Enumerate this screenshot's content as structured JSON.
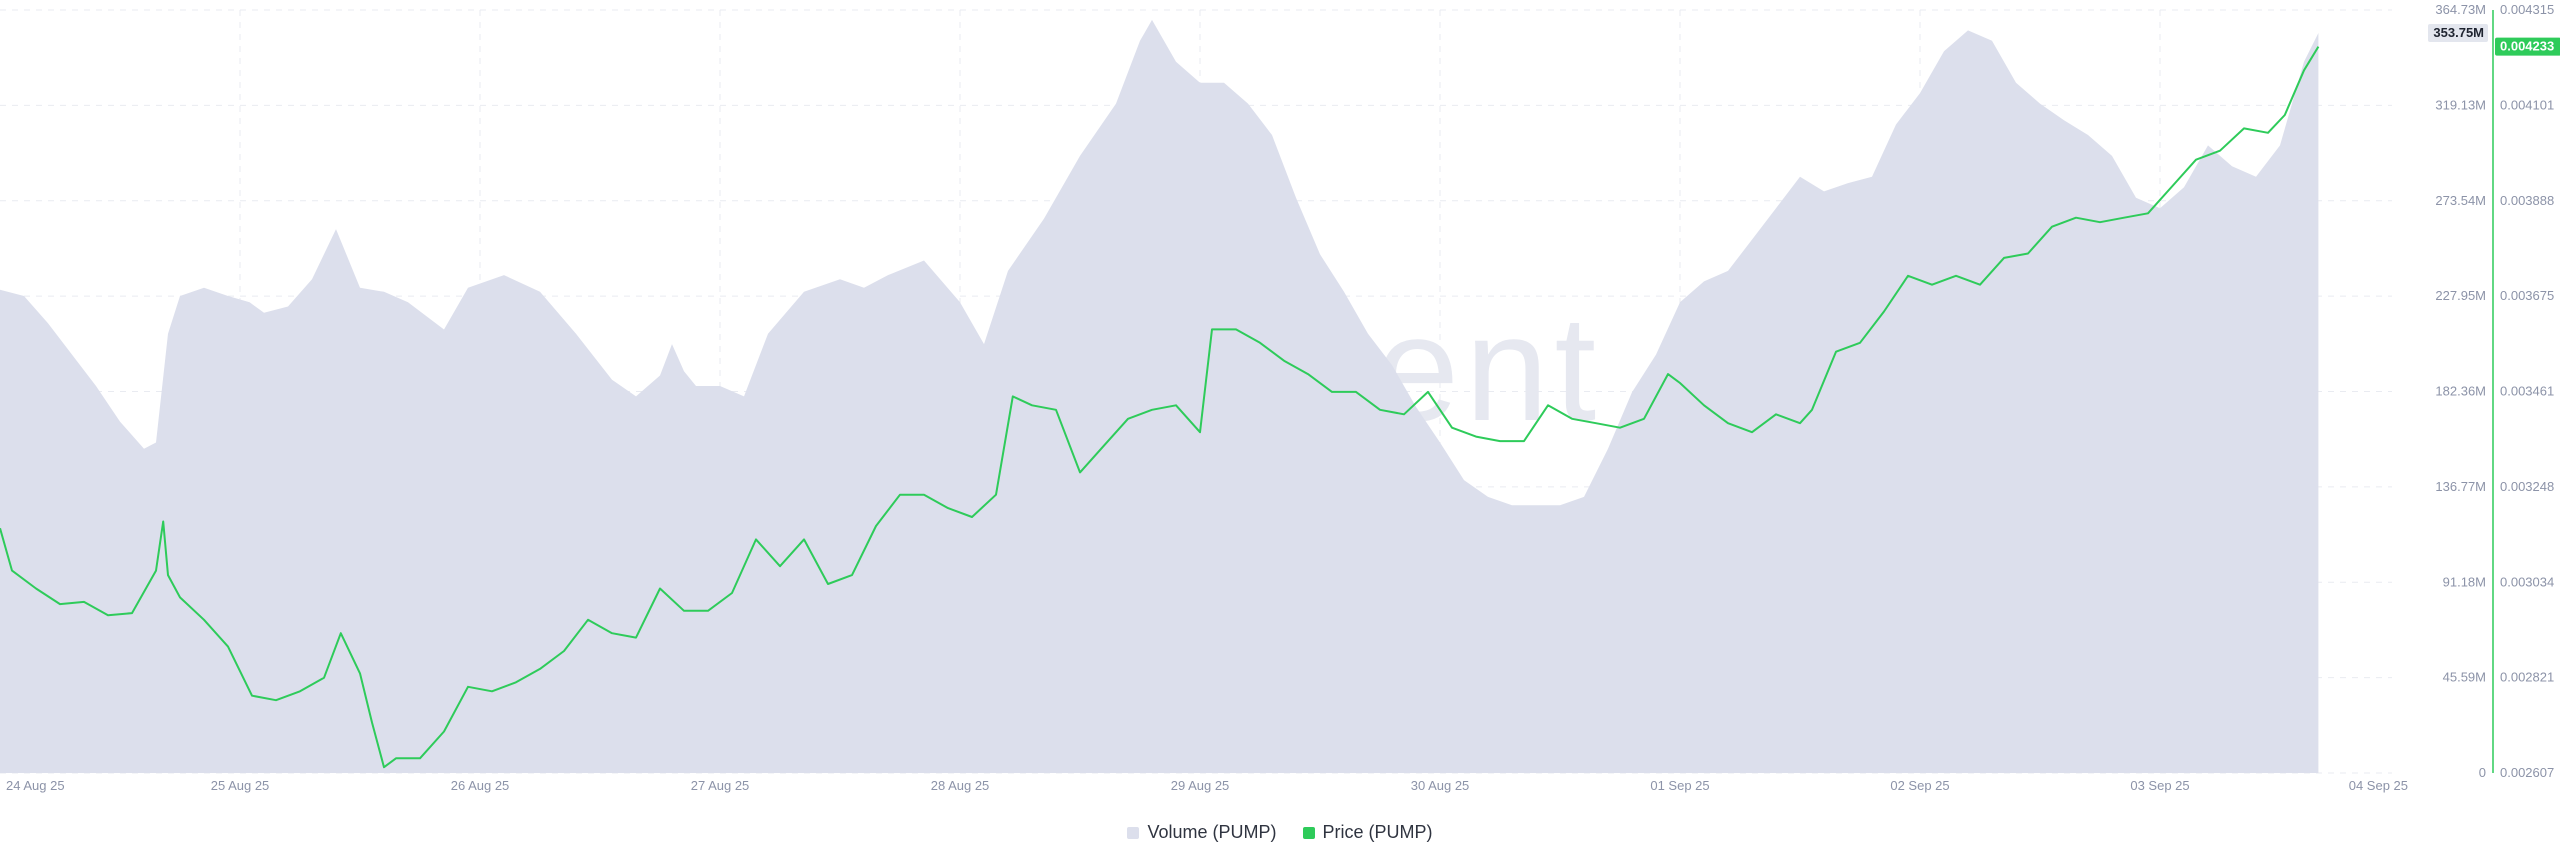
{
  "chart_data": {
    "type": "area+line",
    "x_ticks": [
      "24 Aug 25",
      "25 Aug 25",
      "26 Aug 25",
      "27 Aug 25",
      "28 Aug 25",
      "29 Aug 25",
      "30 Aug 25",
      "01 Sep 25",
      "02 Sep 25",
      "03 Sep 25",
      "04 Sep 25"
    ],
    "volume_axis": {
      "ticks": [
        "0",
        "45.59M",
        "91.18M",
        "136.77M",
        "182.36M",
        "227.95M",
        "273.54M",
        "319.13M",
        "364.73M"
      ],
      "range": [
        0,
        364.73
      ],
      "unit": "M",
      "current_label": "353.75M"
    },
    "price_axis": {
      "ticks": [
        "0.002607",
        "0.002821",
        "0.003034",
        "0.003248",
        "0.003461",
        "0.003675",
        "0.003888",
        "0.004101",
        "0.004315"
      ],
      "range": [
        0.002607,
        0.004315
      ],
      "current_label": "0.004233"
    },
    "series": [
      {
        "name": "Volume (PUMP)",
        "type": "area",
        "color": "#dcdfec",
        "points": [
          [
            0,
            231
          ],
          [
            0.1,
            228
          ],
          [
            0.2,
            215
          ],
          [
            0.3,
            200
          ],
          [
            0.4,
            185
          ],
          [
            0.5,
            168
          ],
          [
            0.6,
            155
          ],
          [
            0.65,
            158
          ],
          [
            0.7,
            210
          ],
          [
            0.75,
            228
          ],
          [
            0.85,
            232
          ],
          [
            0.95,
            228
          ],
          [
            1.04,
            225
          ],
          [
            1.1,
            220
          ],
          [
            1.2,
            223
          ],
          [
            1.3,
            236
          ],
          [
            1.4,
            260
          ],
          [
            1.5,
            232
          ],
          [
            1.6,
            230
          ],
          [
            1.7,
            225
          ],
          [
            1.85,
            212
          ],
          [
            1.95,
            232
          ],
          [
            2.1,
            238
          ],
          [
            2.25,
            230
          ],
          [
            2.4,
            210
          ],
          [
            2.55,
            188
          ],
          [
            2.65,
            180
          ],
          [
            2.75,
            190
          ],
          [
            2.8,
            205
          ],
          [
            2.85,
            192
          ],
          [
            2.9,
            185
          ],
          [
            3.0,
            185
          ],
          [
            3.1,
            180
          ],
          [
            3.2,
            210
          ],
          [
            3.35,
            230
          ],
          [
            3.5,
            236
          ],
          [
            3.6,
            232
          ],
          [
            3.7,
            238
          ],
          [
            3.85,
            245
          ],
          [
            4.0,
            225
          ],
          [
            4.1,
            205
          ],
          [
            4.2,
            240
          ],
          [
            4.35,
            265
          ],
          [
            4.5,
            295
          ],
          [
            4.65,
            320
          ],
          [
            4.75,
            350
          ],
          [
            4.8,
            360
          ],
          [
            4.9,
            340
          ],
          [
            5.0,
            330
          ],
          [
            5.1,
            330
          ],
          [
            5.2,
            320
          ],
          [
            5.3,
            305
          ],
          [
            5.4,
            275
          ],
          [
            5.5,
            248
          ],
          [
            5.6,
            230
          ],
          [
            5.7,
            210
          ],
          [
            5.8,
            195
          ],
          [
            5.9,
            175
          ],
          [
            6.0,
            158
          ],
          [
            6.1,
            140
          ],
          [
            6.2,
            132
          ],
          [
            6.3,
            128
          ],
          [
            6.5,
            128
          ],
          [
            6.6,
            132
          ],
          [
            6.7,
            155
          ],
          [
            6.8,
            182
          ],
          [
            6.9,
            200
          ],
          [
            7.0,
            225
          ],
          [
            7.1,
            235
          ],
          [
            7.2,
            240
          ],
          [
            7.3,
            255
          ],
          [
            7.4,
            270
          ],
          [
            7.5,
            285
          ],
          [
            7.6,
            278
          ],
          [
            7.7,
            282
          ],
          [
            7.8,
            285
          ],
          [
            7.9,
            310
          ],
          [
            8.0,
            325
          ],
          [
            8.1,
            345
          ],
          [
            8.2,
            355
          ],
          [
            8.3,
            350
          ],
          [
            8.4,
            330
          ],
          [
            8.5,
            320
          ],
          [
            8.6,
            312
          ],
          [
            8.7,
            305
          ],
          [
            8.8,
            295
          ],
          [
            8.9,
            275
          ],
          [
            9.0,
            270
          ],
          [
            9.1,
            280
          ],
          [
            9.2,
            300
          ],
          [
            9.3,
            290
          ],
          [
            9.4,
            285
          ],
          [
            9.5,
            300
          ],
          [
            9.6,
            340
          ],
          [
            9.66,
            353.75
          ]
        ]
      },
      {
        "name": "Price (PUMP)",
        "type": "line",
        "color": "#2ecb5a",
        "points": [
          [
            0,
            0.003155
          ],
          [
            0.05,
            0.00306
          ],
          [
            0.15,
            0.00302
          ],
          [
            0.25,
            0.002985
          ],
          [
            0.35,
            0.00299
          ],
          [
            0.45,
            0.00296
          ],
          [
            0.55,
            0.002965
          ],
          [
            0.65,
            0.00306
          ],
          [
            0.68,
            0.00317
          ],
          [
            0.7,
            0.00305
          ],
          [
            0.75,
            0.003
          ],
          [
            0.85,
            0.00295
          ],
          [
            0.95,
            0.00289
          ],
          [
            1.05,
            0.00278
          ],
          [
            1.15,
            0.00277
          ],
          [
            1.25,
            0.00279
          ],
          [
            1.35,
            0.00282
          ],
          [
            1.42,
            0.00292
          ],
          [
            1.5,
            0.00283
          ],
          [
            1.55,
            0.00272
          ],
          [
            1.6,
            0.00262
          ],
          [
            1.65,
            0.00264
          ],
          [
            1.75,
            0.00264
          ],
          [
            1.85,
            0.0027
          ],
          [
            1.95,
            0.0028
          ],
          [
            2.05,
            0.00279
          ],
          [
            2.15,
            0.00281
          ],
          [
            2.25,
            0.00284
          ],
          [
            2.35,
            0.00288
          ],
          [
            2.45,
            0.00295
          ],
          [
            2.55,
            0.00292
          ],
          [
            2.65,
            0.00291
          ],
          [
            2.75,
            0.00302
          ],
          [
            2.85,
            0.00297
          ],
          [
            2.95,
            0.00297
          ],
          [
            3.05,
            0.00301
          ],
          [
            3.15,
            0.00313
          ],
          [
            3.25,
            0.00307
          ],
          [
            3.35,
            0.00313
          ],
          [
            3.45,
            0.00303
          ],
          [
            3.55,
            0.00305
          ],
          [
            3.65,
            0.00316
          ],
          [
            3.75,
            0.00323
          ],
          [
            3.85,
            0.00323
          ],
          [
            3.95,
            0.0032
          ],
          [
            4.05,
            0.00318
          ],
          [
            4.15,
            0.00323
          ],
          [
            4.22,
            0.00345
          ],
          [
            4.3,
            0.00343
          ],
          [
            4.4,
            0.00342
          ],
          [
            4.5,
            0.00328
          ],
          [
            4.6,
            0.00334
          ],
          [
            4.7,
            0.0034
          ],
          [
            4.8,
            0.00342
          ],
          [
            4.9,
            0.00343
          ],
          [
            5.0,
            0.00337
          ],
          [
            5.05,
            0.0036
          ],
          [
            5.15,
            0.0036
          ],
          [
            5.25,
            0.00357
          ],
          [
            5.35,
            0.00353
          ],
          [
            5.45,
            0.0035
          ],
          [
            5.55,
            0.00346
          ],
          [
            5.65,
            0.00346
          ],
          [
            5.75,
            0.00342
          ],
          [
            5.85,
            0.00341
          ],
          [
            5.95,
            0.00346
          ],
          [
            6.05,
            0.00338
          ],
          [
            6.15,
            0.00336
          ],
          [
            6.25,
            0.00335
          ],
          [
            6.35,
            0.00335
          ],
          [
            6.45,
            0.00343
          ],
          [
            6.55,
            0.0034
          ],
          [
            6.65,
            0.00339
          ],
          [
            6.75,
            0.00338
          ],
          [
            6.85,
            0.0034
          ],
          [
            6.95,
            0.0035
          ],
          [
            7.0,
            0.00348
          ],
          [
            7.1,
            0.00343
          ],
          [
            7.2,
            0.00339
          ],
          [
            7.3,
            0.00337
          ],
          [
            7.4,
            0.00341
          ],
          [
            7.5,
            0.00339
          ],
          [
            7.55,
            0.00342
          ],
          [
            7.65,
            0.00355
          ],
          [
            7.75,
            0.00357
          ],
          [
            7.85,
            0.00364
          ],
          [
            7.95,
            0.00372
          ],
          [
            8.05,
            0.0037
          ],
          [
            8.15,
            0.00372
          ],
          [
            8.25,
            0.0037
          ],
          [
            8.35,
            0.00376
          ],
          [
            8.45,
            0.00377
          ],
          [
            8.55,
            0.00383
          ],
          [
            8.65,
            0.00385
          ],
          [
            8.75,
            0.00384
          ],
          [
            8.85,
            0.00385
          ],
          [
            8.95,
            0.00386
          ],
          [
            9.05,
            0.00392
          ],
          [
            9.15,
            0.00398
          ],
          [
            9.25,
            0.004
          ],
          [
            9.35,
            0.00405
          ],
          [
            9.45,
            0.00404
          ],
          [
            9.52,
            0.00408
          ],
          [
            9.6,
            0.00418
          ],
          [
            9.66,
            0.004233
          ]
        ]
      }
    ],
    "grid": true,
    "legend": "bottom-center",
    "watermark": "santiment"
  },
  "legend": {
    "volume_label": "Volume (PUMP)",
    "price_label": "Price (PUMP)",
    "volume_color": "#dcdfec",
    "price_color": "#2ecb5a"
  }
}
